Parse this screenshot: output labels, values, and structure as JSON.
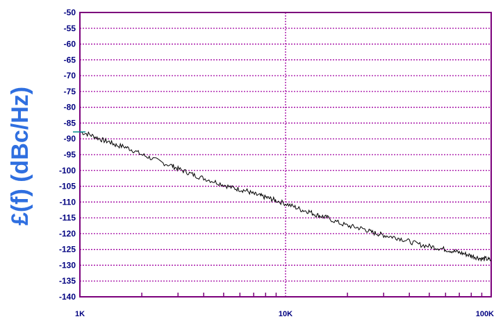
{
  "chart_data": {
    "type": "line",
    "title": "",
    "xlabel": "",
    "ylabel": "£(f) (dBc/Hz)",
    "x_scale": "log",
    "xlim": [
      1000,
      100000
    ],
    "ylim": [
      -140,
      -50
    ],
    "y_ticks": [
      "-50",
      "-55",
      "-60",
      "-65",
      "-70",
      "-75",
      "-80",
      "-85",
      "-90",
      "-95",
      "-100",
      "-105",
      "-110",
      "-115",
      "-120",
      "-125",
      "-130",
      "-135",
      "-140"
    ],
    "x_ticks": [
      {
        "value": 1000,
        "label": "1K"
      },
      {
        "value": 10000,
        "label": "10K"
      },
      {
        "value": 100000,
        "label": "100K"
      }
    ],
    "grid": true,
    "series": [
      {
        "name": "",
        "color": "#000000",
        "x": [
          1000,
          1100,
          1200,
          1300,
          1400,
          1500,
          1650,
          1800,
          2000,
          2200,
          2500,
          2800,
          3000,
          3300,
          3600,
          4000,
          4500,
          5000,
          5500,
          6000,
          6500,
          7000,
          7500,
          8000,
          8500,
          9000,
          10000,
          11000,
          12000,
          13000,
          14000,
          15000,
          16000,
          18000,
          20000,
          22000,
          24000,
          26000,
          28000,
          30000,
          33000,
          36000,
          40000,
          45000,
          50000,
          55000,
          60000,
          65000,
          70000,
          75000,
          80000,
          85000,
          90000,
          95000,
          100000
        ],
        "y": [
          -87.8,
          -88.5,
          -89.5,
          -90.5,
          -91,
          -92,
          -92.5,
          -93.5,
          -95,
          -96,
          -97.5,
          -98.5,
          -99.5,
          -100.5,
          -101.5,
          -102.5,
          -103.5,
          -104.5,
          -105.5,
          -106,
          -106.5,
          -107.5,
          -108,
          -108.5,
          -109,
          -109.5,
          -110.5,
          -111.5,
          -112.5,
          -113,
          -114,
          -114.5,
          -115,
          -116.5,
          -117.5,
          -118,
          -118.5,
          -119.5,
          -120,
          -120.5,
          -121,
          -121.5,
          -122.5,
          -123.5,
          -124,
          -124.5,
          -125,
          -125.5,
          -126,
          -126.5,
          -127,
          -127.5,
          -128,
          -128,
          -128.5
        ]
      }
    ],
    "reference_marker": {
      "x": 1000,
      "y": -87.8,
      "color": "#008b8b"
    },
    "colors": {
      "frame": "#7b007b",
      "grid": "#a000a0",
      "tick_text": "#000080",
      "ylabel": "#2f6fe0"
    }
  }
}
